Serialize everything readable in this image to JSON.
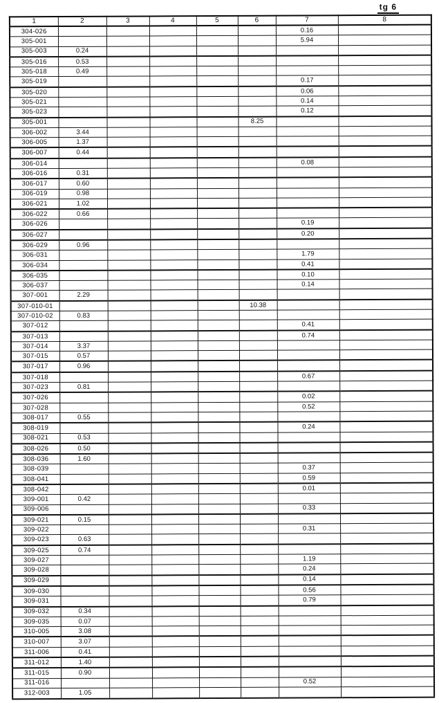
{
  "page_title": "tg 6",
  "table": {
    "columns": [
      "1",
      "2",
      "3",
      "4",
      "5",
      "6",
      "7",
      "8"
    ],
    "rows": [
      [
        "304-026",
        "",
        "",
        "",
        "",
        "",
        "0.16",
        ""
      ],
      [
        "305-001",
        "",
        "",
        "",
        "",
        "",
        "5.94",
        ""
      ],
      [
        "305-003",
        "0.24",
        "",
        "",
        "",
        "",
        "",
        ""
      ],
      [
        "305-016",
        "0.53",
        "",
        "",
        "",
        "",
        "",
        ""
      ],
      [
        "305-018",
        "0.49",
        "",
        "",
        "",
        "",
        "",
        ""
      ],
      [
        "305-019",
        "",
        "",
        "",
        "",
        "",
        "0.17",
        ""
      ],
      [
        "305-020",
        "",
        "",
        "",
        "",
        "",
        "0.06",
        ""
      ],
      [
        "305-021",
        "",
        "",
        "",
        "",
        "",
        "0.14",
        ""
      ],
      [
        "305-023",
        "",
        "",
        "",
        "",
        "",
        "0.12",
        ""
      ],
      [
        "305-001",
        "",
        "",
        "",
        "",
        "8.25",
        "",
        ""
      ],
      [
        "306-002",
        "3.44",
        "",
        "",
        "",
        "",
        "",
        ""
      ],
      [
        "306-005",
        "1.37",
        "",
        "",
        "",
        "",
        "",
        ""
      ],
      [
        "306-007",
        "0.44",
        "",
        "",
        "",
        "",
        "",
        ""
      ],
      [
        "306-014",
        "",
        "",
        "",
        "",
        "",
        "0.08",
        ""
      ],
      [
        "306-016",
        "0.31",
        "",
        "",
        "",
        "",
        "",
        ""
      ],
      [
        "306-017",
        "0.60",
        "",
        "",
        "",
        "",
        "",
        ""
      ],
      [
        "306-019",
        "0.98",
        "",
        "",
        "",
        "",
        "",
        ""
      ],
      [
        "306-021",
        "1.02",
        "",
        "",
        "",
        "",
        "",
        ""
      ],
      [
        "306-022",
        "0.66",
        "",
        "",
        "",
        "",
        "",
        ""
      ],
      [
        "306-026",
        "",
        "",
        "",
        "",
        "",
        "0.19",
        ""
      ],
      [
        "306-027",
        "",
        "",
        "",
        "",
        "",
        "0.20",
        ""
      ],
      [
        "306-029",
        "0.96",
        "",
        "",
        "",
        "",
        "",
        ""
      ],
      [
        "306-031",
        "",
        "",
        "",
        "",
        "",
        "1.79",
        ""
      ],
      [
        "306-034",
        "",
        "",
        "",
        "",
        "",
        "0.41",
        ""
      ],
      [
        "306-035",
        "",
        "",
        "",
        "",
        "",
        "0.10",
        ""
      ],
      [
        "306-037",
        "",
        "",
        "",
        "",
        "",
        "0.14",
        ""
      ],
      [
        "307-001",
        "2.29",
        "",
        "",
        "",
        "",
        "",
        ""
      ],
      [
        "307-010-01",
        "",
        "",
        "",
        "",
        "10.38",
        "",
        ""
      ],
      [
        "307-010-02",
        "0.83",
        "",
        "",
        "",
        "",
        "",
        ""
      ],
      [
        "307-012",
        "",
        "",
        "",
        "",
        "",
        "0.41",
        ""
      ],
      [
        "307-013",
        "",
        "",
        "",
        "",
        "",
        "0.74",
        ""
      ],
      [
        "307-014",
        "3.37",
        "",
        "",
        "",
        "",
        "",
        ""
      ],
      [
        "307-015",
        "0.57",
        "",
        "",
        "",
        "",
        "",
        ""
      ],
      [
        "307-017",
        "0.96",
        "",
        "",
        "",
        "",
        "",
        ""
      ],
      [
        "307-018",
        "",
        "",
        "",
        "",
        "",
        "0.67",
        ""
      ],
      [
        "307-023",
        "0.81",
        "",
        "",
        "",
        "",
        "",
        ""
      ],
      [
        "307-026",
        "",
        "",
        "",
        "",
        "",
        "0.02",
        ""
      ],
      [
        "307-028",
        "",
        "",
        "",
        "",
        "",
        "0.52",
        ""
      ],
      [
        "308-017",
        "0.55",
        "",
        "",
        "",
        "",
        "",
        ""
      ],
      [
        "308-019",
        "",
        "",
        "",
        "",
        "",
        "0.24",
        ""
      ],
      [
        "308-021",
        "0.53",
        "",
        "",
        "",
        "",
        "",
        ""
      ],
      [
        "308-026",
        "0.50",
        "",
        "",
        "",
        "",
        "",
        ""
      ],
      [
        "308-036",
        "1.60",
        "",
        "",
        "",
        "",
        "",
        ""
      ],
      [
        "308-039",
        "",
        "",
        "",
        "",
        "",
        "0.37",
        ""
      ],
      [
        "308-041",
        "",
        "",
        "",
        "",
        "",
        "0.59",
        ""
      ],
      [
        "308-042",
        "",
        "",
        "",
        "",
        "",
        "0.01",
        ""
      ],
      [
        "309-001",
        "0.42",
        "",
        "",
        "",
        "",
        "",
        ""
      ],
      [
        "309-006",
        "",
        "",
        "",
        "",
        "",
        "0.33",
        ""
      ],
      [
        "309-021",
        "0.15",
        "",
        "",
        "",
        "",
        "",
        ""
      ],
      [
        "309-022",
        "",
        "",
        "",
        "",
        "",
        "0.31",
        ""
      ],
      [
        "309-023",
        "0.63",
        "",
        "",
        "",
        "",
        "",
        ""
      ],
      [
        "309-025",
        "0.74",
        "",
        "",
        "",
        "",
        "",
        ""
      ],
      [
        "309-027",
        "",
        "",
        "",
        "",
        "",
        "1.19",
        ""
      ],
      [
        "309-028",
        "",
        "",
        "",
        "",
        "",
        "0.24",
        ""
      ],
      [
        "309-029",
        "",
        "",
        "",
        "",
        "",
        "0.14",
        ""
      ],
      [
        "309-030",
        "",
        "",
        "",
        "",
        "",
        "0.56",
        ""
      ],
      [
        "309-031",
        "",
        "",
        "",
        "",
        "",
        "0.79",
        ""
      ],
      [
        "309-032",
        "0.34",
        "",
        "",
        "",
        "",
        "",
        ""
      ],
      [
        "309-035",
        "0.07",
        "",
        "",
        "",
        "",
        "",
        ""
      ],
      [
        "310-005",
        "3.08",
        "",
        "",
        "",
        "",
        "",
        ""
      ],
      [
        "310-007",
        "3.07",
        "",
        "",
        "",
        "",
        "",
        ""
      ],
      [
        "311-006",
        "0.41",
        "",
        "",
        "",
        "",
        "",
        ""
      ],
      [
        "311-012",
        "1.40",
        "",
        "",
        "",
        "",
        "",
        ""
      ],
      [
        "311-015",
        "0.90",
        "",
        "",
        "",
        "",
        "",
        ""
      ],
      [
        "311-016",
        "",
        "",
        "",
        "",
        "",
        "0.52",
        ""
      ],
      [
        "312-003",
        "1.05",
        "",
        "",
        "",
        "",
        "",
        ""
      ]
    ]
  }
}
